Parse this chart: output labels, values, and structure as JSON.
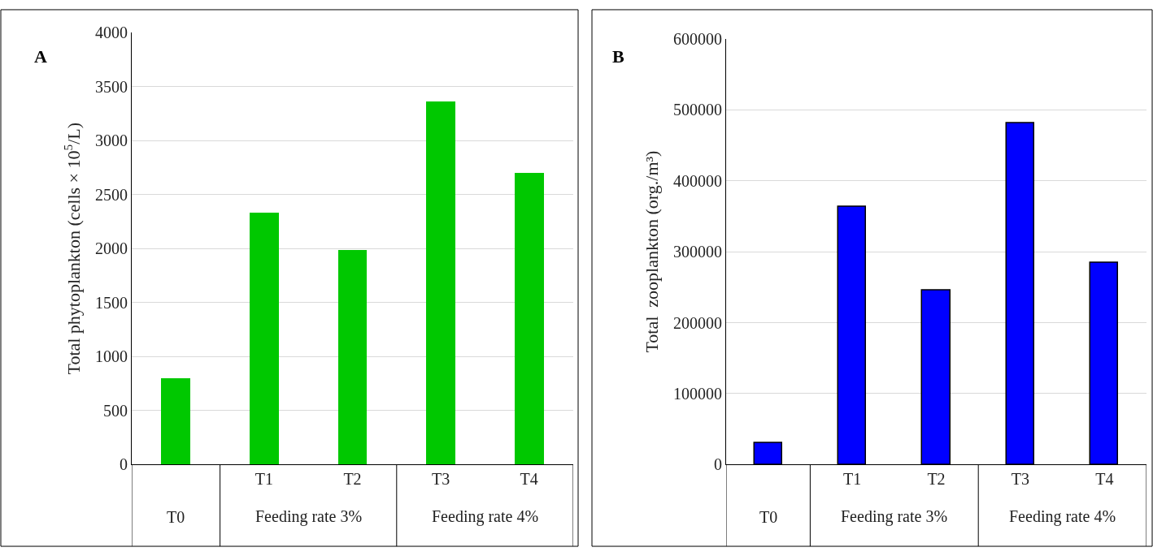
{
  "chart_data": [
    {
      "type": "bar",
      "title": "A",
      "ylabel": "Total phytoplankton (cells × 10$^{5}$/L)",
      "categories": [
        null,
        "T1",
        "T2",
        "T3",
        "T4"
      ],
      "values": [
        800,
        2330,
        1990,
        3365,
        2700
      ],
      "color": "#00c800",
      "ylim": [
        0,
        4000
      ],
      "yticks": [
        0,
        500,
        1000,
        1500,
        2000,
        2500,
        3000,
        3500,
        4000
      ],
      "grid": "y",
      "annotations": [
        "T0",
        "Feeding rate 3%",
        "Feeding rate 4%"
      ]
    },
    {
      "type": "bar",
      "title": "B",
      "ylabel": "Total  zooplankton (org./m³)",
      "categories": [
        null,
        "T1",
        "T2",
        "T3",
        "T4"
      ],
      "values": [
        30000,
        363000,
        246000,
        481000,
        284000
      ],
      "color": "#0000ff",
      "ylim": [
        0,
        600000
      ],
      "yticks": [
        0,
        100000,
        200000,
        300000,
        400000,
        500000,
        600000
      ],
      "grid": "y",
      "annotations": [
        "T0",
        "Feeding rate 3%",
        "Feeding rate 4%"
      ]
    }
  ]
}
